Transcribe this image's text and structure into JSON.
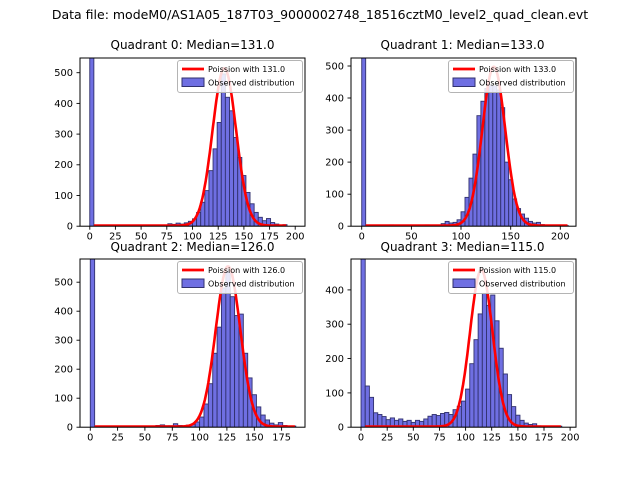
{
  "window": {
    "suptitle": "Data file: modeM0/AS1A05_187T03_9000002748_18516cztM0_level2_quad_clean.evt"
  },
  "colors": {
    "bar_fill": "#6f6fe2",
    "bar_edge": "#31316e",
    "curve": "#ff0000",
    "axis": "#000000",
    "legend_border": "#b4b4b4",
    "legend_bg": "#ffffff",
    "text": "#000000"
  },
  "chart_data": [
    {
      "type": "histogram",
      "quadrant": 0,
      "title": "Quadrant 0: Median=131.0",
      "median": 131.0,
      "legend": {
        "line_label": "Poission with 131.0",
        "bar_label": "Observed distribution"
      },
      "xlim": [
        -9.5,
        209.5
      ],
      "ylim": [
        0,
        548
      ],
      "xticks": [
        0,
        25,
        50,
        75,
        100,
        125,
        150,
        175,
        200
      ],
      "yticks": [
        0,
        100,
        200,
        300,
        400,
        500
      ],
      "bin_start": 0,
      "bin_width": 4,
      "zero_bin_clipped": true,
      "counts": [
        3000,
        0,
        0,
        0,
        0,
        0,
        0,
        0,
        0,
        0,
        0,
        1,
        0,
        1,
        0,
        2,
        3,
        2,
        4,
        8,
        6,
        10,
        7,
        11,
        16,
        24,
        45,
        78,
        116,
        181,
        252,
        338,
        496,
        420,
        376,
        289,
        224,
        165,
        110,
        73,
        45,
        29,
        18,
        25,
        12,
        7,
        4,
        5
      ],
      "curve": {
        "mu": 131.0,
        "peak": 515,
        "baseline": 2,
        "x_start": 4,
        "x_end": 192
      }
    },
    {
      "type": "histogram",
      "quadrant": 1,
      "title": "Quadrant 1: Median=133.0",
      "median": 133.0,
      "legend": {
        "line_label": "Poission with 133.0",
        "bar_label": "Observed distribution"
      },
      "xlim": [
        -10.8,
        215.8
      ],
      "ylim": [
        0,
        525
      ],
      "xticks": [
        0,
        50,
        100,
        150,
        200
      ],
      "yticks": [
        0,
        100,
        200,
        300,
        400,
        500
      ],
      "bin_start": 0,
      "bin_width": 4,
      "zero_bin_clipped": true,
      "counts": [
        3000,
        0,
        0,
        0,
        0,
        0,
        0,
        4,
        0,
        0,
        0,
        0,
        0,
        0,
        0,
        0,
        4,
        3,
        2,
        2,
        8,
        15,
        10,
        12,
        20,
        45,
        90,
        150,
        225,
        345,
        390,
        430,
        440,
        438,
        425,
        370,
        200,
        145,
        85,
        55,
        38,
        25,
        15,
        10,
        12,
        5,
        3,
        2,
        2,
        1,
        1,
        2
      ],
      "curve": {
        "mu": 133.0,
        "peak": 498,
        "baseline": 2,
        "x_start": 4,
        "x_end": 208
      }
    },
    {
      "type": "histogram",
      "quadrant": 2,
      "title": "Quadrant 2: Median=126.0",
      "median": 126.0,
      "legend": {
        "line_label": "Poission with 126.0",
        "bar_label": "Observed distribution"
      },
      "xlim": [
        -9.4,
        196.4
      ],
      "ylim": [
        0,
        580
      ],
      "xticks": [
        0,
        25,
        50,
        75,
        100,
        125,
        150,
        175
      ],
      "yticks": [
        0,
        100,
        200,
        300,
        400,
        500
      ],
      "bin_start": 0,
      "bin_width": 4,
      "zero_bin_clipped": true,
      "counts": [
        3000,
        0,
        0,
        0,
        0,
        0,
        0,
        0,
        0,
        0,
        0,
        0,
        0,
        0,
        0,
        6,
        8,
        5,
        5,
        12,
        6,
        5,
        7,
        10,
        18,
        35,
        80,
        150,
        255,
        345,
        480,
        538,
        450,
        385,
        390,
        255,
        170,
        112,
        70,
        42,
        25,
        14,
        8,
        16,
        6,
        3,
        4
      ],
      "curve": {
        "mu": 126.0,
        "peak": 555,
        "baseline": 2,
        "x_start": 4,
        "x_end": 188
      }
    },
    {
      "type": "histogram",
      "quadrant": 3,
      "title": "Quadrant 3: Median=115.0",
      "median": 115.0,
      "legend": {
        "line_label": "Poission with 115.0",
        "bar_label": "Observed distribution"
      },
      "xlim": [
        -9.6,
        205.6
      ],
      "ylim": [
        0,
        490
      ],
      "xticks": [
        0,
        25,
        50,
        75,
        100,
        125,
        150,
        175,
        200
      ],
      "yticks": [
        0,
        100,
        200,
        300,
        400
      ],
      "bin_start": 0,
      "bin_width": 4,
      "zero_bin_clipped": true,
      "counts": [
        3000,
        120,
        87,
        42,
        37,
        31,
        22,
        27,
        20,
        24,
        17,
        20,
        14,
        20,
        17,
        24,
        32,
        37,
        34,
        40,
        43,
        37,
        51,
        61,
        76,
        111,
        185,
        255,
        330,
        390,
        355,
        385,
        310,
        230,
        155,
        95,
        60,
        35,
        20,
        12,
        8,
        10,
        4,
        2,
        2,
        1,
        1,
        3
      ],
      "curve": {
        "mu": 115.0,
        "peak": 458,
        "baseline": 2,
        "x_start": 4,
        "x_end": 192
      }
    }
  ]
}
